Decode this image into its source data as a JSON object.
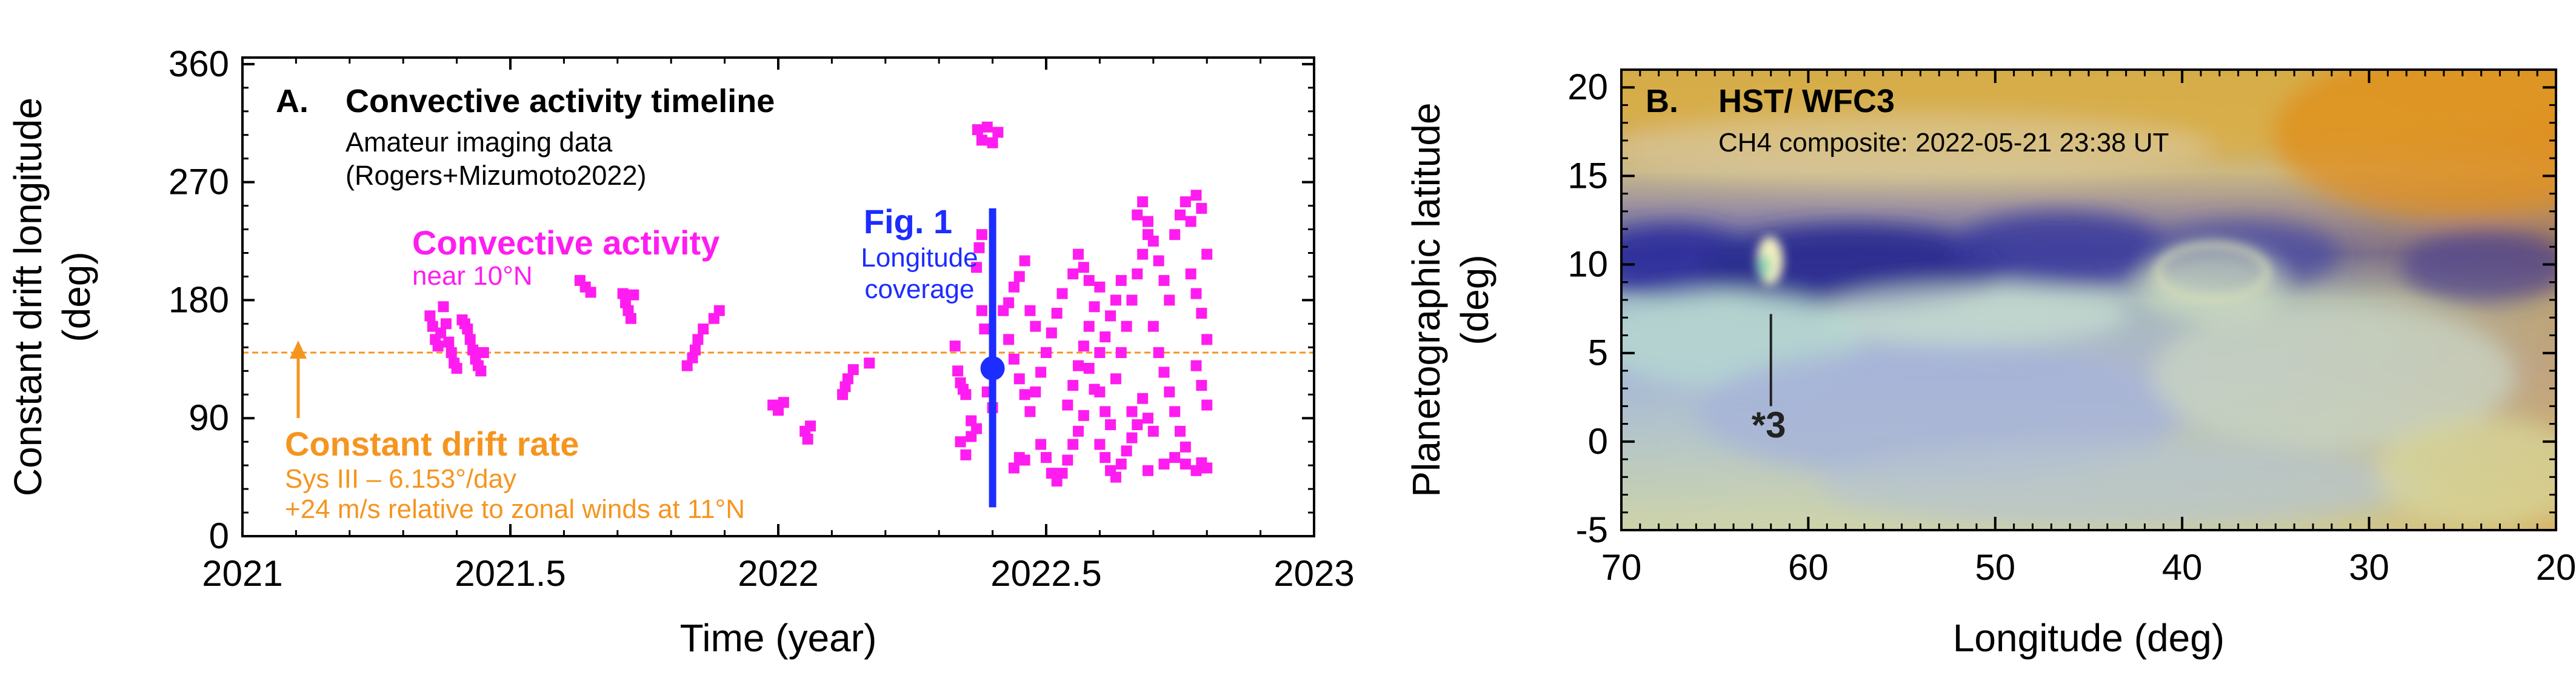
{
  "chart_data": [
    {
      "panel_label": "A.",
      "title": "Convective activity timeline",
      "subtitle_lines": [
        "Amateur imaging data",
        "(Rogers+Mizumoto2022)"
      ],
      "type": "scatter",
      "xlabel": "Time (year)",
      "ylabel_lines": [
        "Constant drift longitude",
        "(deg)"
      ],
      "xlim": [
        2021,
        2023
      ],
      "ylim": [
        0,
        365
      ],
      "xticks": [
        "2021",
        "2021.5",
        "2022",
        "2022.5",
        "2023"
      ],
      "xtick_values": [
        2021,
        2021.5,
        2022,
        2022.5,
        2023
      ],
      "yticks": [
        "0",
        "90",
        "180",
        "270",
        "360"
      ],
      "ytick_values": [
        0,
        90,
        180,
        270,
        360
      ],
      "series": [
        {
          "name": "Convective activity",
          "sublabel": "near 10°N",
          "color": "#ff1cf0",
          "points": [
            [
              2021.35,
              168
            ],
            [
              2021.355,
              160
            ],
            [
              2021.36,
              150
            ],
            [
              2021.365,
              145
            ],
            [
              2021.37,
              155
            ],
            [
              2021.375,
              175
            ],
            [
              2021.38,
              162
            ],
            [
              2021.385,
              148
            ],
            [
              2021.39,
              140
            ],
            [
              2021.395,
              132
            ],
            [
              2021.4,
              128
            ],
            [
              2021.41,
              165
            ],
            [
              2021.415,
              162
            ],
            [
              2021.42,
              158
            ],
            [
              2021.425,
              150
            ],
            [
              2021.43,
              142
            ],
            [
              2021.435,
              135
            ],
            [
              2021.44,
              130
            ],
            [
              2021.445,
              126
            ],
            [
              2021.45,
              140
            ],
            [
              2021.63,
              195
            ],
            [
              2021.64,
              190
            ],
            [
              2021.65,
              186
            ],
            [
              2021.71,
              185
            ],
            [
              2021.715,
              178
            ],
            [
              2021.72,
              172
            ],
            [
              2021.725,
              166
            ],
            [
              2021.73,
              184
            ],
            [
              2021.83,
              130
            ],
            [
              2021.84,
              136
            ],
            [
              2021.845,
              142
            ],
            [
              2021.85,
              150
            ],
            [
              2021.86,
              158
            ],
            [
              2021.88,
              166
            ],
            [
              2021.89,
              172
            ],
            [
              2021.99,
              100
            ],
            [
              2022.0,
              96
            ],
            [
              2022.01,
              102
            ],
            [
              2022.05,
              80
            ],
            [
              2022.055,
              74
            ],
            [
              2022.06,
              84
            ],
            [
              2022.12,
              108
            ],
            [
              2022.125,
              114
            ],
            [
              2022.13,
              120
            ],
            [
              2022.14,
              127
            ],
            [
              2022.17,
              132
            ],
            [
              2022.33,
              145
            ],
            [
              2022.335,
              126
            ],
            [
              2022.34,
              117
            ],
            [
              2022.345,
              112
            ],
            [
              2022.35,
              108
            ],
            [
              2022.34,
              72
            ],
            [
              2022.35,
              62
            ],
            [
              2022.36,
              76
            ],
            [
              2022.37,
              205
            ],
            [
              2022.375,
              220
            ],
            [
              2022.38,
              230
            ],
            [
              2022.372,
              310
            ],
            [
              2022.38,
              302
            ],
            [
              2022.39,
              312
            ],
            [
              2022.4,
              300
            ],
            [
              2022.41,
              308
            ],
            [
              2022.38,
              172
            ],
            [
              2022.385,
              158
            ],
            [
              2022.39,
              110
            ],
            [
              2022.4,
              98
            ],
            [
              2022.36,
              88
            ],
            [
              2022.37,
              82
            ],
            [
              2022.42,
              172
            ],
            [
              2022.43,
              178
            ],
            [
              2022.44,
              190
            ],
            [
              2022.45,
              198
            ],
            [
              2022.46,
              210
            ],
            [
              2022.47,
              172
            ],
            [
              2022.48,
              160
            ],
            [
              2022.44,
              52
            ],
            [
              2022.45,
              60
            ],
            [
              2022.46,
              58
            ],
            [
              2022.43,
              150
            ],
            [
              2022.44,
              135
            ],
            [
              2022.45,
              120
            ],
            [
              2022.46,
              108
            ],
            [
              2022.47,
              95
            ],
            [
              2022.48,
              110
            ],
            [
              2022.49,
              125
            ],
            [
              2022.5,
              140
            ],
            [
              2022.51,
              155
            ],
            [
              2022.52,
              170
            ],
            [
              2022.53,
              185
            ],
            [
              2022.49,
              70
            ],
            [
              2022.5,
              60
            ],
            [
              2022.51,
              48
            ],
            [
              2022.52,
              42
            ],
            [
              2022.53,
              48
            ],
            [
              2022.54,
              58
            ],
            [
              2022.55,
              70
            ],
            [
              2022.54,
              100
            ],
            [
              2022.55,
              115
            ],
            [
              2022.56,
              130
            ],
            [
              2022.57,
              145
            ],
            [
              2022.58,
              160
            ],
            [
              2022.59,
              175
            ],
            [
              2022.6,
              190
            ],
            [
              2022.55,
              200
            ],
            [
              2022.56,
              215
            ],
            [
              2022.57,
              205
            ],
            [
              2022.58,
              195
            ],
            [
              2022.6,
              110
            ],
            [
              2022.61,
              95
            ],
            [
              2022.62,
              85
            ],
            [
              2022.6,
              70
            ],
            [
              2022.61,
              60
            ],
            [
              2022.62,
              50
            ],
            [
              2022.63,
              45
            ],
            [
              2022.64,
              55
            ],
            [
              2022.65,
              65
            ],
            [
              2022.66,
              75
            ],
            [
              2022.63,
              120
            ],
            [
              2022.64,
              140
            ],
            [
              2022.65,
              160
            ],
            [
              2022.66,
              180
            ],
            [
              2022.67,
              200
            ],
            [
              2022.68,
              215
            ],
            [
              2022.69,
              230
            ],
            [
              2022.67,
              245
            ],
            [
              2022.68,
              255
            ],
            [
              2022.69,
              240
            ],
            [
              2022.7,
              225
            ],
            [
              2022.71,
              210
            ],
            [
              2022.72,
              195
            ],
            [
              2022.73,
              180
            ],
            [
              2022.7,
              160
            ],
            [
              2022.71,
              140
            ],
            [
              2022.72,
              125
            ],
            [
              2022.73,
              110
            ],
            [
              2022.74,
              95
            ],
            [
              2022.75,
              80
            ],
            [
              2022.76,
              68
            ],
            [
              2022.74,
              230
            ],
            [
              2022.75,
              245
            ],
            [
              2022.76,
              255
            ],
            [
              2022.77,
              240
            ],
            [
              2022.78,
              260
            ],
            [
              2022.79,
              250
            ],
            [
              2022.8,
              215
            ],
            [
              2022.77,
              200
            ],
            [
              2022.78,
              185
            ],
            [
              2022.79,
              170
            ],
            [
              2022.8,
              150
            ],
            [
              2022.78,
              130
            ],
            [
              2022.79,
              115
            ],
            [
              2022.8,
              100
            ],
            [
              2022.74,
              60
            ],
            [
              2022.76,
              55
            ],
            [
              2022.78,
              50
            ],
            [
              2022.79,
              56
            ],
            [
              2022.8,
              52
            ],
            [
              2022.69,
              50
            ],
            [
              2022.72,
              55
            ],
            [
              2022.58,
              128
            ],
            [
              2022.59,
              112
            ],
            [
              2022.6,
              140
            ],
            [
              2022.61,
              152
            ],
            [
              2022.62,
              168
            ],
            [
              2022.63,
              180
            ],
            [
              2022.64,
              195
            ],
            [
              2022.68,
              105
            ],
            [
              2022.69,
              90
            ],
            [
              2022.7,
              80
            ],
            [
              2022.66,
              95
            ],
            [
              2022.67,
              85
            ],
            [
              2022.57,
              92
            ],
            [
              2022.56,
              80
            ]
          ]
        }
      ],
      "reference_line": {
        "label": "Constant drift rate",
        "y": 140,
        "details": [
          "Sys III – 6.153°/day",
          "+24 m/s relative to zonal winds at 11°N"
        ],
        "color": "#f5951f"
      },
      "coverage": {
        "label": "Fig. 1",
        "sublabels": [
          "Longitude",
          "coverage"
        ],
        "x": 2022.4,
        "y_range": [
          22,
          250
        ],
        "marker_y": 128,
        "color": "#1d2cff"
      }
    },
    {
      "panel_label": "B.",
      "title": "HST/ WFC3",
      "subtitle": "CH4 composite: 2022-05-21 23:38 UT",
      "type": "image",
      "xlabel": "Longitude (deg)",
      "ylabel_lines": [
        "Planetographic latitude",
        "(deg)"
      ],
      "xlim": [
        70,
        20
      ],
      "ylim": [
        -5,
        21
      ],
      "xticks": [
        "70",
        "60",
        "50",
        "40",
        "30",
        "20"
      ],
      "xtick_values": [
        70,
        60,
        50,
        40,
        30,
        20
      ],
      "yticks": [
        "-5",
        "0",
        "5",
        "10",
        "15",
        "20"
      ],
      "ytick_values": [
        -5,
        0,
        5,
        10,
        15,
        20
      ],
      "annotation": {
        "label": "*3",
        "x": 62,
        "y": 0.5
      }
    }
  ]
}
